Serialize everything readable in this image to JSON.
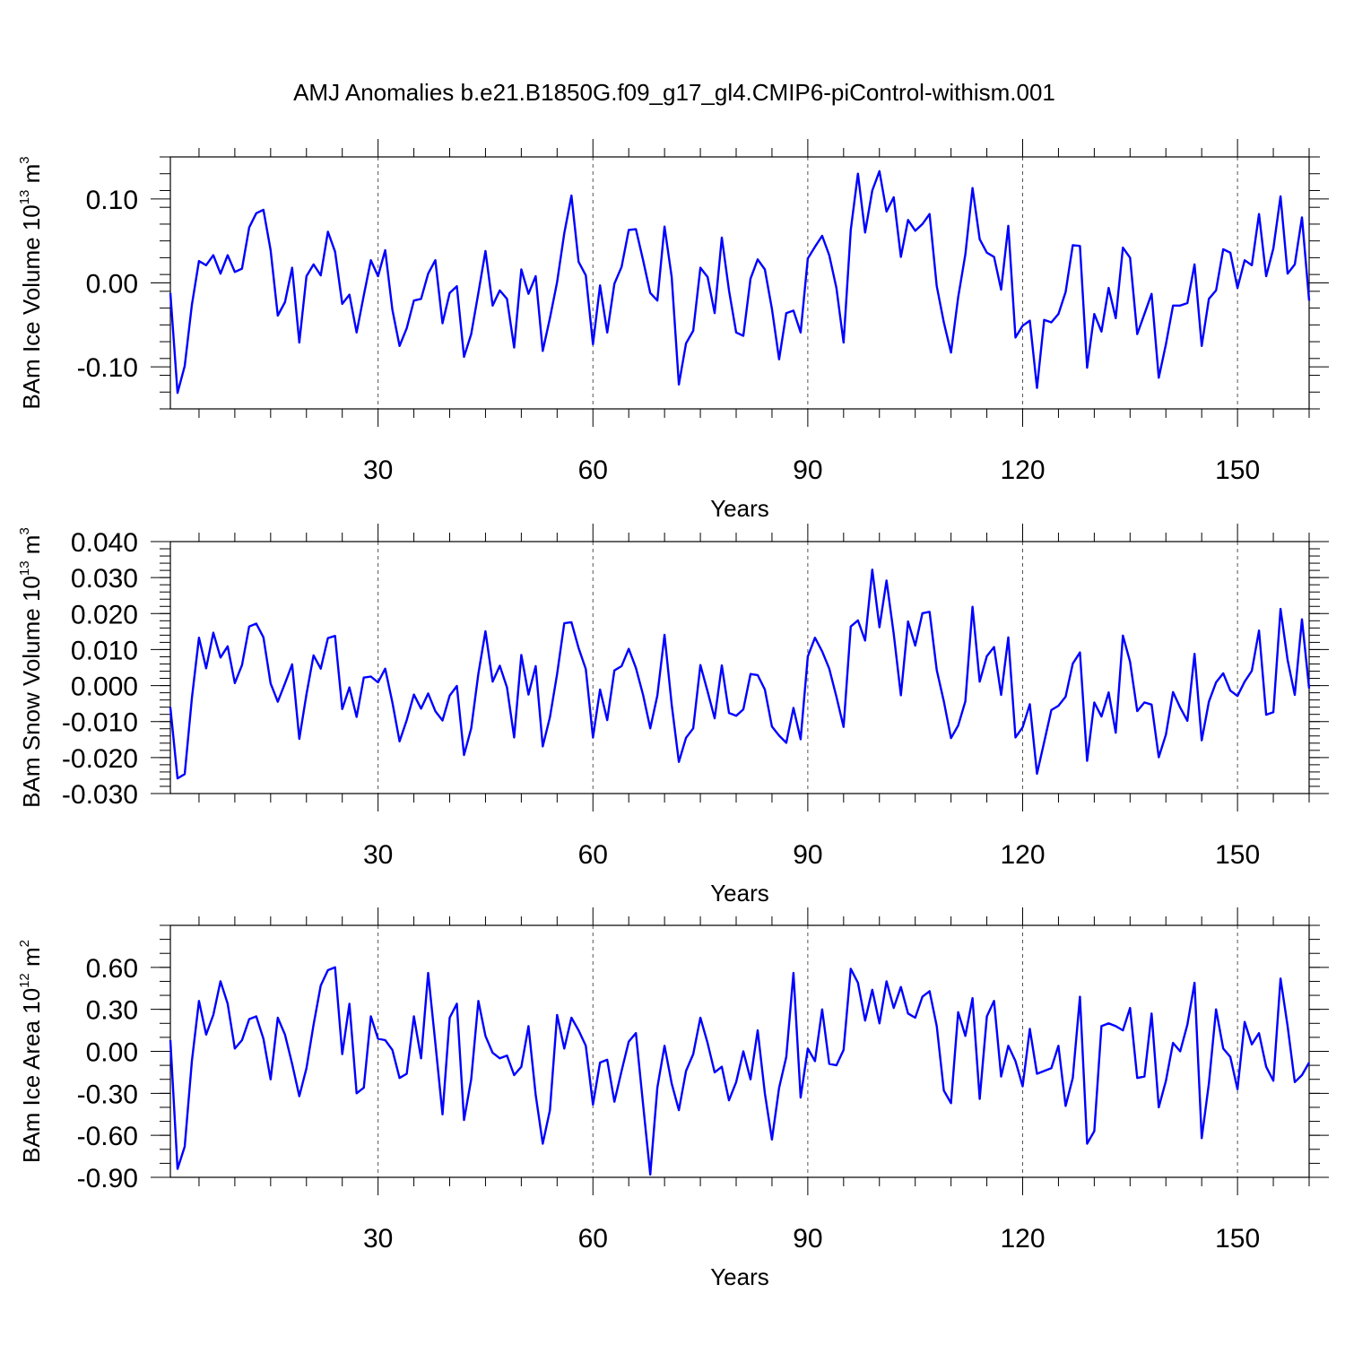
{
  "title": "AMJ Anomalies b.e21.B1850G.f09_g17_gl4.CMIP6-piControl-withism.001",
  "chart_data": [
    {
      "type": "line",
      "title": "",
      "xlabel": "Years",
      "ylabel": {
        "base": "BAm Ice Volume 10",
        "exp": "13",
        "unit": " m",
        "unit_exp": "3"
      },
      "xlim": [
        1,
        160
      ],
      "ylim": [
        -0.15,
        0.15
      ],
      "xticks": [
        30,
        60,
        90,
        120,
        150
      ],
      "xtick_labels": [
        "30",
        "60",
        "90",
        "120",
        "150"
      ],
      "yticks": [
        -0.1,
        0.0,
        0.1
      ],
      "ytick_labels": [
        "-0.10",
        "0.00",
        "0.10"
      ],
      "x_minor_step": 5,
      "y_minor_step": 0.02,
      "vgrid": "dashed at major x ticks",
      "color": "#0000ff",
      "x_start": 1,
      "series": [
        {
          "values": [
            -0.012,
            -0.131,
            -0.099,
            -0.026,
            0.026,
            0.021,
            0.033,
            0.011,
            0.033,
            0.013,
            0.017,
            0.066,
            0.083,
            0.087,
            0.039,
            -0.039,
            -0.023,
            0.018,
            -0.071,
            0.008,
            0.022,
            0.009,
            0.061,
            0.037,
            -0.025,
            -0.014,
            -0.059,
            -0.015,
            0.027,
            0.008,
            0.039,
            -0.032,
            -0.075,
            -0.054,
            -0.021,
            -0.019,
            0.011,
            0.027,
            -0.048,
            -0.012,
            -0.004,
            -0.088,
            -0.061,
            -0.012,
            0.038,
            -0.027,
            -0.009,
            -0.019,
            -0.077,
            0.016,
            -0.013,
            0.008,
            -0.081,
            -0.042,
            0.001,
            0.059,
            0.104,
            0.025,
            0.009,
            -0.073,
            -0.003,
            -0.059,
            -0.001,
            0.019,
            0.063,
            0.064,
            0.027,
            -0.012,
            -0.021,
            0.067,
            0.007,
            -0.121,
            -0.072,
            -0.057,
            0.018,
            0.007,
            -0.036,
            0.054,
            -0.009,
            -0.059,
            -0.063,
            0.005,
            0.028,
            0.016,
            -0.031,
            -0.091,
            -0.036,
            -0.033,
            -0.059,
            0.029,
            0.043,
            0.056,
            0.033,
            -0.006,
            -0.071,
            0.063,
            0.13,
            0.06,
            0.11,
            0.133,
            0.085,
            0.102,
            0.031,
            0.075,
            0.062,
            0.07,
            0.082,
            -0.004,
            -0.047,
            -0.083,
            -0.017,
            0.034,
            0.113,
            0.052,
            0.036,
            0.031,
            -0.008,
            0.068,
            -0.065,
            -0.051,
            -0.045,
            -0.125,
            -0.044,
            -0.047,
            -0.037,
            -0.011,
            0.045,
            0.044,
            -0.101,
            -0.037,
            -0.058,
            -0.006,
            -0.042,
            0.042,
            0.03,
            -0.061,
            -0.037,
            -0.013,
            -0.113,
            -0.073,
            -0.027,
            -0.027,
            -0.024,
            0.022,
            -0.075,
            -0.019,
            -0.009,
            0.04,
            0.036,
            -0.006,
            0.027,
            0.021,
            0.082,
            0.008,
            0.041,
            0.103,
            0.011,
            0.022,
            0.078,
            -0.021
          ]
        }
      ]
    },
    {
      "type": "line",
      "title": "",
      "xlabel": "Years",
      "ylabel": {
        "base": "BAm Snow Volume 10",
        "exp": "13",
        "unit": " m",
        "unit_exp": "3"
      },
      "xlim": [
        1,
        160
      ],
      "ylim": [
        -0.03,
        0.04
      ],
      "xticks": [
        30,
        60,
        90,
        120,
        150
      ],
      "xtick_labels": [
        "30",
        "60",
        "90",
        "120",
        "150"
      ],
      "yticks": [
        -0.03,
        -0.02,
        -0.01,
        0.0,
        0.01,
        0.02,
        0.03,
        0.04
      ],
      "ytick_labels": [
        "-0.030",
        "-0.020",
        "-0.010",
        "0.000",
        "0.010",
        "0.020",
        "0.030",
        "0.040"
      ],
      "x_minor_step": 5,
      "y_minor_step": 0.002,
      "vgrid": "dashed at major x ticks",
      "color": "#0000ff",
      "x_start": 1,
      "series": [
        {
          "values": [
            -0.006,
            -0.0258,
            -0.0246,
            -0.0035,
            0.0133,
            0.0048,
            0.0147,
            0.0078,
            0.0109,
            0.0007,
            0.0057,
            0.0164,
            0.0172,
            0.0134,
            0.0006,
            -0.0045,
            0.0006,
            0.0059,
            -0.0148,
            -0.0024,
            0.0084,
            0.0047,
            0.0132,
            0.0138,
            -0.0065,
            -0.0005,
            -0.0087,
            0.0022,
            0.0025,
            0.0009,
            0.0047,
            -0.0047,
            -0.0155,
            -0.0096,
            -0.0025,
            -0.0064,
            -0.0022,
            -0.0071,
            -0.0097,
            -0.0028,
            -0.0001,
            -0.0193,
            -0.0119,
            0.0033,
            0.0151,
            0.0011,
            0.0055,
            -0.0005,
            -0.0144,
            0.0085,
            -0.0025,
            0.0054,
            -0.0169,
            -0.0088,
            0.0032,
            0.0173,
            0.0176,
            0.0104,
            0.0046,
            -0.0144,
            -0.0011,
            -0.0096,
            0.0042,
            0.0054,
            0.0102,
            0.0049,
            -0.0026,
            -0.0119,
            -0.0028,
            0.0141,
            -0.0053,
            -0.0212,
            -0.0145,
            -0.0119,
            0.0057,
            -0.0016,
            -0.0091,
            0.0056,
            -0.0076,
            -0.0084,
            -0.0066,
            0.0032,
            0.0029,
            -0.0011,
            -0.0114,
            -0.0139,
            -0.0159,
            -0.0062,
            -0.0149,
            0.0081,
            0.0133,
            0.0095,
            0.0047,
            -0.0031,
            -0.0115,
            0.0164,
            0.0181,
            0.0125,
            0.0322,
            0.0162,
            0.0292,
            0.0144,
            -0.0027,
            0.0178,
            0.0111,
            0.0201,
            0.0205,
            0.0043,
            -0.0044,
            -0.0146,
            -0.0111,
            -0.0044,
            0.0219,
            0.0011,
            0.0082,
            0.0107,
            -0.0026,
            0.0134,
            -0.0144,
            -0.0116,
            -0.0052,
            -0.0245,
            -0.0157,
            -0.0068,
            -0.0056,
            -0.0031,
            0.0061,
            0.0092,
            -0.0209,
            -0.0047,
            -0.0086,
            -0.0019,
            -0.0131,
            0.0139,
            0.0066,
            -0.0071,
            -0.0047,
            -0.0053,
            -0.0199,
            -0.0136,
            -0.0018,
            -0.0061,
            -0.0098,
            0.0088,
            -0.0152,
            -0.0045,
            0.0009,
            0.0034,
            -0.0014,
            -0.0029,
            0.0011,
            0.0041,
            0.0153,
            -0.0081,
            -0.0074,
            0.0213,
            0.0071,
            -0.0026,
            0.0184,
            -0.0008
          ]
        }
      ]
    },
    {
      "type": "line",
      "title": "",
      "xlabel": "Years",
      "ylabel": {
        "base": "BAm Ice Area 10",
        "exp": "12",
        "unit": " m",
        "unit_exp": "2"
      },
      "xlim": [
        1,
        160
      ],
      "ylim": [
        -0.9,
        0.9
      ],
      "xticks": [
        30,
        60,
        90,
        120,
        150
      ],
      "xtick_labels": [
        "30",
        "60",
        "90",
        "120",
        "150"
      ],
      "yticks": [
        -0.9,
        -0.6,
        -0.3,
        0.0,
        0.3,
        0.6
      ],
      "ytick_labels": [
        "-0.90",
        "-0.60",
        "-0.30",
        "0.00",
        "0.30",
        "0.60"
      ],
      "x_minor_step": 5,
      "y_minor_step": 0.1,
      "vgrid": "dashed at major x ticks",
      "color": "#0000ff",
      "x_start": 1,
      "series": [
        {
          "values": [
            0.08,
            -0.84,
            -0.68,
            -0.07,
            0.36,
            0.12,
            0.26,
            0.5,
            0.34,
            0.02,
            0.08,
            0.23,
            0.25,
            0.09,
            -0.2,
            0.24,
            0.12,
            -0.09,
            -0.32,
            -0.12,
            0.19,
            0.47,
            0.58,
            0.6,
            -0.02,
            0.34,
            -0.3,
            -0.26,
            0.25,
            0.09,
            0.08,
            0.01,
            -0.19,
            -0.16,
            0.25,
            -0.05,
            0.56,
            0.06,
            -0.45,
            0.24,
            0.34,
            -0.49,
            -0.2,
            0.36,
            0.11,
            -0.01,
            -0.05,
            -0.03,
            -0.17,
            -0.11,
            0.18,
            -0.31,
            -0.66,
            -0.42,
            0.26,
            0.02,
            0.24,
            0.15,
            0.04,
            -0.38,
            -0.08,
            -0.06,
            -0.36,
            -0.14,
            0.07,
            0.13,
            -0.38,
            -0.88,
            -0.26,
            0.04,
            -0.23,
            -0.42,
            -0.14,
            -0.02,
            0.24,
            0.06,
            -0.15,
            -0.11,
            -0.35,
            -0.22,
            0.0,
            -0.2,
            0.15,
            -0.3,
            -0.63,
            -0.26,
            -0.04,
            0.56,
            -0.33,
            0.02,
            -0.07,
            0.3,
            -0.09,
            -0.1,
            0.01,
            0.59,
            0.49,
            0.22,
            0.44,
            0.2,
            0.5,
            0.31,
            0.46,
            0.27,
            0.24,
            0.39,
            0.43,
            0.18,
            -0.28,
            -0.37,
            0.28,
            0.11,
            0.38,
            -0.34,
            0.25,
            0.36,
            -0.18,
            0.04,
            -0.07,
            -0.25,
            0.16,
            -0.16,
            -0.14,
            -0.12,
            0.04,
            -0.39,
            -0.19,
            0.39,
            -0.66,
            -0.57,
            0.18,
            0.2,
            0.18,
            0.15,
            0.31,
            -0.19,
            -0.18,
            0.27,
            -0.4,
            -0.21,
            0.06,
            0.0,
            0.19,
            0.49,
            -0.62,
            -0.23,
            0.3,
            0.02,
            -0.04,
            -0.27,
            0.21,
            0.05,
            0.13,
            -0.11,
            -0.21,
            0.52,
            0.18,
            -0.22,
            -0.17,
            -0.08
          ]
        }
      ]
    }
  ]
}
